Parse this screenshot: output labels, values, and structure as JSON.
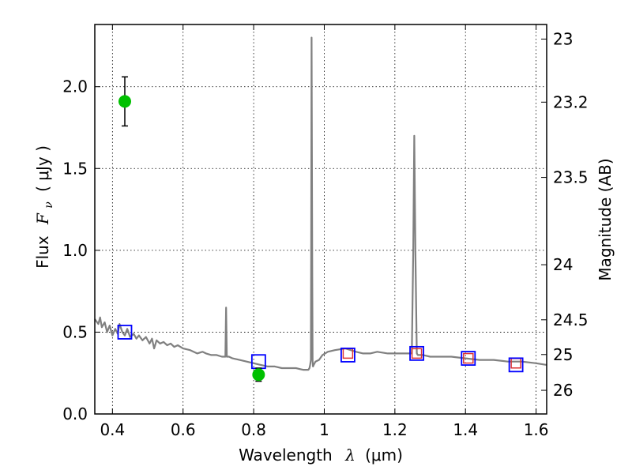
{
  "chart_data": {
    "type": "line",
    "xlabel_text": "Wavelength",
    "xlabel_symbol": "λ",
    "xlabel_unit": "(μm)",
    "ylabel_text": "Flux",
    "ylabel_symbol": "F",
    "ylabel_sub": "ν",
    "ylabel_unit": "( μJy )",
    "y2label": "Magnitude (AB)",
    "xlim": [
      0.35,
      1.63
    ],
    "ylim": [
      0.0,
      2.38
    ],
    "grid": true,
    "x_ticks": [
      {
        "value": 0.4,
        "label": "0.4"
      },
      {
        "value": 0.6,
        "label": "0.6"
      },
      {
        "value": 0.8,
        "label": "0.8"
      },
      {
        "value": 1.0,
        "label": "1"
      },
      {
        "value": 1.2,
        "label": "1.2"
      },
      {
        "value": 1.4,
        "label": "1.4"
      },
      {
        "value": 1.6,
        "label": "1.6"
      }
    ],
    "y_ticks": [
      {
        "value": 0.0,
        "label": "0.0"
      },
      {
        "value": 0.5,
        "label": "0.5"
      },
      {
        "value": 1.0,
        "label": "1.0"
      },
      {
        "value": 1.5,
        "label": "1.5"
      },
      {
        "value": 2.0,
        "label": "2.0"
      }
    ],
    "y2_ticks": [
      {
        "mag": 23,
        "label": "23"
      },
      {
        "mag": 23.2,
        "label": "23.2"
      },
      {
        "mag": 23.5,
        "label": "23.5"
      },
      {
        "mag": 24,
        "label": "24"
      },
      {
        "mag": 24.5,
        "label": "24.5"
      },
      {
        "mag": 25,
        "label": "25"
      },
      {
        "mag": 26,
        "label": "26"
      }
    ],
    "model_spectrum": {
      "color": "#808080",
      "x": [
        0.35,
        0.36,
        0.365,
        0.37,
        0.378,
        0.385,
        0.392,
        0.4,
        0.408,
        0.415,
        0.42,
        0.428,
        0.435,
        0.442,
        0.45,
        0.46,
        0.468,
        0.475,
        0.485,
        0.495,
        0.505,
        0.512,
        0.518,
        0.525,
        0.535,
        0.545,
        0.555,
        0.565,
        0.575,
        0.585,
        0.6,
        0.62,
        0.64,
        0.655,
        0.665,
        0.68,
        0.695,
        0.71,
        0.72,
        0.722,
        0.724,
        0.726,
        0.728,
        0.73,
        0.74,
        0.76,
        0.78,
        0.8,
        0.82,
        0.84,
        0.86,
        0.88,
        0.9,
        0.92,
        0.94,
        0.95,
        0.955,
        0.958,
        0.96,
        0.962,
        0.963,
        0.964,
        0.966,
        0.967,
        0.968,
        0.97,
        0.975,
        0.985,
        0.995,
        1.01,
        1.03,
        1.06,
        1.09,
        1.11,
        1.13,
        1.15,
        1.18,
        1.2,
        1.22,
        1.24,
        1.248,
        1.252,
        1.255,
        1.258,
        1.262,
        1.265,
        1.268,
        1.27,
        1.274,
        1.28,
        1.3,
        1.33,
        1.36,
        1.4,
        1.44,
        1.48,
        1.52,
        1.56,
        1.6,
        1.63
      ],
      "y": [
        0.58,
        0.55,
        0.59,
        0.53,
        0.56,
        0.5,
        0.54,
        0.48,
        0.52,
        0.49,
        0.55,
        0.5,
        0.48,
        0.52,
        0.47,
        0.49,
        0.46,
        0.48,
        0.45,
        0.47,
        0.43,
        0.46,
        0.4,
        0.45,
        0.43,
        0.44,
        0.42,
        0.43,
        0.41,
        0.42,
        0.4,
        0.39,
        0.37,
        0.38,
        0.37,
        0.36,
        0.36,
        0.35,
        0.35,
        0.65,
        0.35,
        0.35,
        0.35,
        0.35,
        0.34,
        0.33,
        0.32,
        0.31,
        0.3,
        0.29,
        0.29,
        0.28,
        0.28,
        0.28,
        0.27,
        0.27,
        0.27,
        0.28,
        0.3,
        0.33,
        1.0,
        2.3,
        0.8,
        0.32,
        0.29,
        0.3,
        0.32,
        0.33,
        0.36,
        0.38,
        0.39,
        0.4,
        0.38,
        0.37,
        0.37,
        0.38,
        0.37,
        0.37,
        0.37,
        0.37,
        0.37,
        1.0,
        1.7,
        1.0,
        0.37,
        0.36,
        0.36,
        0.36,
        0.36,
        0.36,
        0.35,
        0.35,
        0.35,
        0.34,
        0.33,
        0.33,
        0.32,
        0.32,
        0.31,
        0.3
      ]
    },
    "model_photometry": {
      "marker": "square",
      "color": "#0000ff",
      "points": [
        {
          "x": 0.435,
          "y": 0.5
        },
        {
          "x": 0.814,
          "y": 0.32
        },
        {
          "x": 1.067,
          "y": 0.36
        },
        {
          "x": 1.262,
          "y": 0.37
        },
        {
          "x": 1.408,
          "y": 0.34
        },
        {
          "x": 1.543,
          "y": 0.3
        }
      ]
    },
    "observed_photometry": {
      "marker": "square",
      "color": "#dd3333",
      "points": [
        {
          "x": 1.067,
          "y": 0.37
        },
        {
          "x": 1.262,
          "y": 0.37
        },
        {
          "x": 1.408,
          "y": 0.34
        },
        {
          "x": 1.543,
          "y": 0.31
        }
      ]
    },
    "detections": {
      "marker": "circle",
      "color": "#00c000",
      "points": [
        {
          "x": 0.435,
          "y": 1.91,
          "err": 0.15
        },
        {
          "x": 0.814,
          "y": 0.24,
          "err": 0.04
        }
      ]
    }
  }
}
